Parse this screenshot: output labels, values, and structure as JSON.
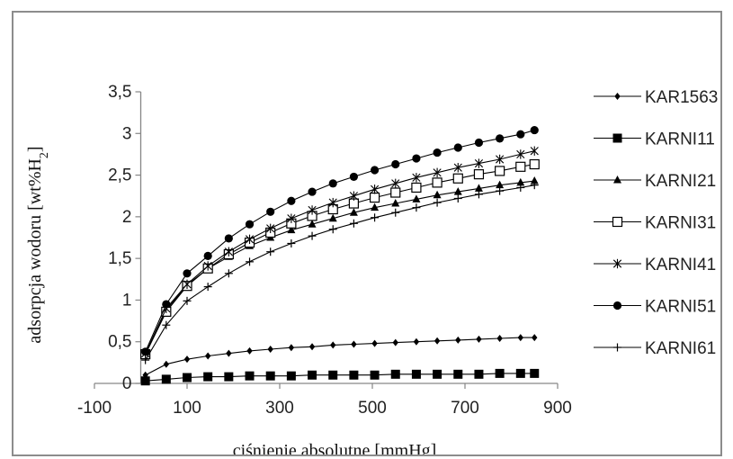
{
  "chart_data": {
    "type": "line",
    "xlabel": "ciśnienie absolutne [mmHg]",
    "ylabel": "adsorpcja wodoru [wt%H",
    "ylabel_sub": "2",
    "ylabel_close": "]",
    "xlim": [
      -100,
      900
    ],
    "ylim": [
      0,
      3.5
    ],
    "x_ticks": [
      -100,
      100,
      300,
      500,
      700,
      900
    ],
    "x_tick_labels": [
      "-100",
      "100",
      "300",
      "500",
      "700",
      "900"
    ],
    "y_ticks": [
      0,
      0.5,
      1,
      1.5,
      2,
      2.5,
      3,
      3.5
    ],
    "y_tick_labels": [
      "0",
      "0,5",
      "1",
      "1,5",
      "2",
      "2,5",
      "3",
      "3,5"
    ],
    "grid": false,
    "legend_position": "right",
    "series": [
      {
        "name": "KAR1563",
        "marker": "diamond",
        "x": [
          10,
          55,
          100,
          145,
          190,
          235,
          280,
          325,
          370,
          415,
          460,
          505,
          550,
          595,
          640,
          685,
          730,
          775,
          820,
          850
        ],
        "y": [
          0.1,
          0.23,
          0.29,
          0.33,
          0.36,
          0.39,
          0.41,
          0.43,
          0.44,
          0.46,
          0.47,
          0.48,
          0.49,
          0.5,
          0.51,
          0.52,
          0.53,
          0.54,
          0.55,
          0.55
        ]
      },
      {
        "name": "KARNI11",
        "marker": "filled-square",
        "x": [
          10,
          55,
          100,
          145,
          190,
          235,
          280,
          325,
          370,
          415,
          460,
          505,
          550,
          595,
          640,
          685,
          730,
          775,
          820,
          850
        ],
        "y": [
          0.03,
          0.05,
          0.07,
          0.08,
          0.08,
          0.09,
          0.09,
          0.09,
          0.1,
          0.1,
          0.1,
          0.1,
          0.11,
          0.11,
          0.11,
          0.11,
          0.11,
          0.12,
          0.12,
          0.12
        ]
      },
      {
        "name": "KARNI21",
        "marker": "triangle",
        "x": [
          10,
          55,
          100,
          145,
          190,
          235,
          280,
          325,
          370,
          415,
          460,
          505,
          550,
          595,
          640,
          685,
          730,
          775,
          820,
          850
        ],
        "y": [
          0.35,
          0.88,
          1.18,
          1.38,
          1.52,
          1.65,
          1.75,
          1.84,
          1.91,
          1.98,
          2.05,
          2.11,
          2.16,
          2.21,
          2.26,
          2.3,
          2.34,
          2.38,
          2.41,
          2.43
        ]
      },
      {
        "name": "KARNI31",
        "marker": "open-square",
        "x": [
          10,
          55,
          100,
          145,
          190,
          235,
          280,
          325,
          370,
          415,
          460,
          505,
          550,
          595,
          640,
          685,
          730,
          775,
          820,
          850
        ],
        "y": [
          0.35,
          0.86,
          1.17,
          1.38,
          1.55,
          1.69,
          1.81,
          1.92,
          2.01,
          2.09,
          2.16,
          2.23,
          2.29,
          2.35,
          2.41,
          2.46,
          2.51,
          2.55,
          2.6,
          2.63
        ]
      },
      {
        "name": "KARNI41",
        "marker": "asterisk",
        "x": [
          10,
          55,
          100,
          145,
          190,
          235,
          280,
          325,
          370,
          415,
          460,
          505,
          550,
          595,
          640,
          685,
          730,
          775,
          820,
          850
        ],
        "y": [
          0.36,
          0.9,
          1.19,
          1.41,
          1.58,
          1.73,
          1.86,
          1.98,
          2.08,
          2.17,
          2.25,
          2.33,
          2.4,
          2.47,
          2.53,
          2.59,
          2.64,
          2.69,
          2.75,
          2.79
        ]
      },
      {
        "name": "KARNI51",
        "marker": "circle",
        "x": [
          10,
          55,
          100,
          145,
          190,
          235,
          280,
          325,
          370,
          415,
          460,
          505,
          550,
          595,
          640,
          685,
          730,
          775,
          820,
          850
        ],
        "y": [
          0.38,
          0.95,
          1.32,
          1.53,
          1.74,
          1.91,
          2.06,
          2.19,
          2.3,
          2.4,
          2.48,
          2.56,
          2.63,
          2.7,
          2.77,
          2.83,
          2.89,
          2.94,
          2.99,
          3.04
        ]
      },
      {
        "name": "KARNI61",
        "marker": "plus",
        "x": [
          10,
          55,
          100,
          145,
          190,
          235,
          280,
          325,
          370,
          415,
          460,
          505,
          550,
          595,
          640,
          685,
          730,
          775,
          820,
          850
        ],
        "y": [
          0.28,
          0.7,
          0.99,
          1.16,
          1.32,
          1.46,
          1.58,
          1.68,
          1.77,
          1.85,
          1.92,
          1.99,
          2.05,
          2.11,
          2.17,
          2.22,
          2.27,
          2.31,
          2.35,
          2.38
        ]
      }
    ]
  },
  "colors": {
    "line": "#000000",
    "axis": "#868686",
    "frame": "#8c8c8c"
  }
}
